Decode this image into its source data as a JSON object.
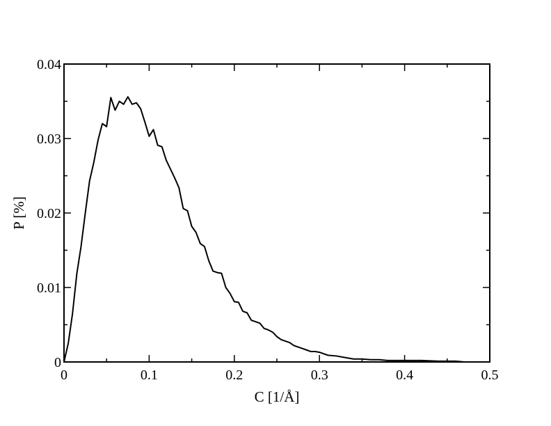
{
  "chart_data": {
    "type": "line",
    "title": "",
    "xlabel": "C [1/Å]",
    "ylabel": "P [%]",
    "xlim": [
      0,
      0.5
    ],
    "ylim": [
      0,
      0.04
    ],
    "x_ticks": [
      0,
      0.1,
      0.2,
      0.3,
      0.4,
      0.5
    ],
    "x_tick_labels": [
      "0",
      "0.1",
      "0.2",
      "0.3",
      "0.4",
      "0.5"
    ],
    "y_ticks": [
      0,
      0.01,
      0.02,
      0.03,
      0.04
    ],
    "y_tick_labels": [
      "0",
      "0.01",
      "0.02",
      "0.03",
      "0.04"
    ],
    "grid": false,
    "legend": "none",
    "line_color": "#000000",
    "series": [
      {
        "x": [
          0.0,
          0.005,
          0.01,
          0.015,
          0.02,
          0.025,
          0.03,
          0.035,
          0.04,
          0.045,
          0.05,
          0.055,
          0.06,
          0.065,
          0.07,
          0.075,
          0.08,
          0.085,
          0.09,
          0.095,
          0.1,
          0.105,
          0.11,
          0.115,
          0.12,
          0.125,
          0.13,
          0.135,
          0.14,
          0.145,
          0.15,
          0.155,
          0.16,
          0.165,
          0.17,
          0.175,
          0.18,
          0.185,
          0.19,
          0.195,
          0.2,
          0.205,
          0.21,
          0.215,
          0.22,
          0.225,
          0.23,
          0.235,
          0.24,
          0.245,
          0.25,
          0.255,
          0.26,
          0.265,
          0.27,
          0.275,
          0.28,
          0.285,
          0.29,
          0.295,
          0.3,
          0.31,
          0.32,
          0.33,
          0.34,
          0.35,
          0.36,
          0.37,
          0.38,
          0.39,
          0.4,
          0.42,
          0.44,
          0.46,
          0.47
        ],
        "y": [
          0.0,
          0.0025,
          0.0065,
          0.0118,
          0.0155,
          0.02,
          0.0243,
          0.0268,
          0.0298,
          0.032,
          0.0316,
          0.0355,
          0.0338,
          0.035,
          0.0346,
          0.0356,
          0.0346,
          0.0348,
          0.034,
          0.0322,
          0.0303,
          0.0312,
          0.0291,
          0.0289,
          0.0271,
          0.0259,
          0.0247,
          0.0234,
          0.0206,
          0.0203,
          0.0182,
          0.0174,
          0.0159,
          0.0155,
          0.0136,
          0.0122,
          0.012,
          0.0119,
          0.01,
          0.0092,
          0.0081,
          0.008,
          0.0068,
          0.0066,
          0.0056,
          0.0054,
          0.0052,
          0.0045,
          0.0043,
          0.004,
          0.0034,
          0.003,
          0.0028,
          0.0026,
          0.0022,
          0.002,
          0.0018,
          0.0016,
          0.0014,
          0.0014,
          0.0013,
          0.0009,
          0.0008,
          0.0006,
          0.0004,
          0.0004,
          0.0003,
          0.0003,
          0.0002,
          0.0002,
          0.0002,
          0.0002,
          0.0001,
          0.0001,
          0.0
        ]
      }
    ]
  }
}
